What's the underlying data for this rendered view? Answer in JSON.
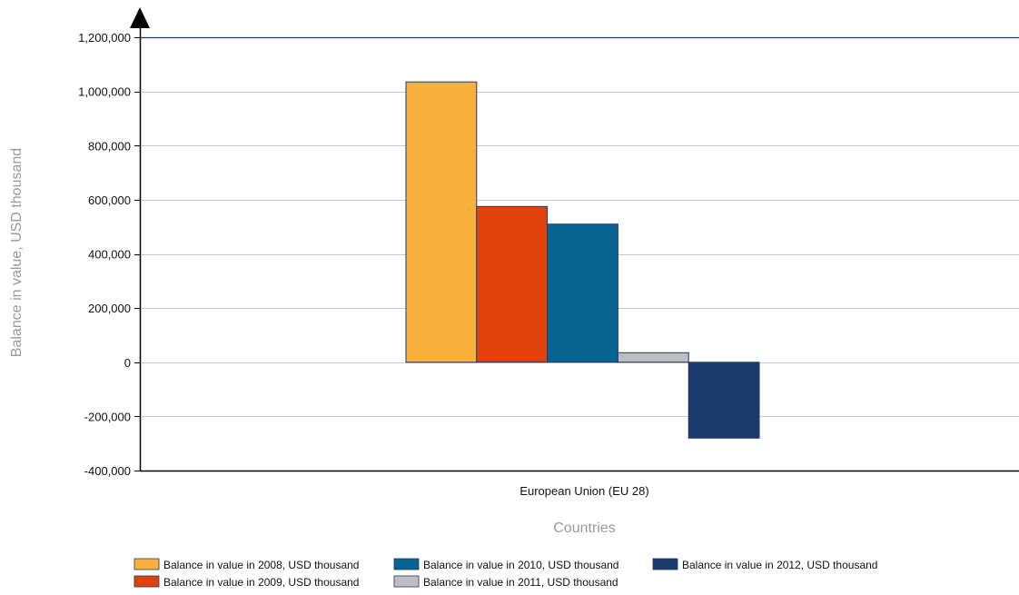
{
  "chart_data": {
    "type": "bar",
    "title": "",
    "xlabel": "Countries",
    "ylabel": "Balance in value, USD thousand",
    "categories": [
      "European Union (EU 28)"
    ],
    "ylim": [
      -400000,
      1200000
    ],
    "yticks": [
      -400000,
      -200000,
      0,
      200000,
      400000,
      600000,
      800000,
      1000000,
      1200000
    ],
    "ytick_labels": [
      "-400,000",
      "-200,000",
      "0",
      "200,000",
      "400,000",
      "600,000",
      "800,000",
      "1,000,000",
      "1,200,000"
    ],
    "grid": true,
    "legend_position": "bottom",
    "series": [
      {
        "name": "Balance in value in 2008, USD thousand",
        "values": [
          1035000
        ],
        "color": "#F9B03D"
      },
      {
        "name": "Balance in value in 2009, USD thousand",
        "values": [
          575000
        ],
        "color": "#E0420D"
      },
      {
        "name": "Balance in value in 2010, USD thousand",
        "values": [
          510000
        ],
        "color": "#086592"
      },
      {
        "name": "Balance in value in 2011, USD thousand",
        "values": [
          35000
        ],
        "color": "#BCBEC0"
      },
      {
        "name": "Balance in value in 2012, USD thousand",
        "values": [
          -280000
        ],
        "color": "#1B3A6B"
      }
    ],
    "bar_border_color": "#1B3A6B",
    "axis_color": "#000000",
    "top_border_color": "#1B3A6B"
  }
}
